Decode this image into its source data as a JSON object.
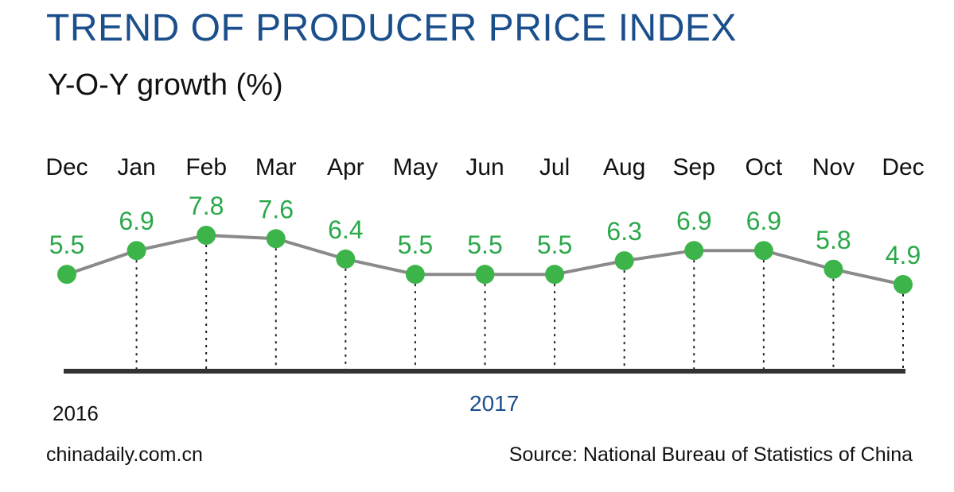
{
  "header": {
    "title": "TREND OF PRODUCER PRICE INDEX",
    "subtitle": "Y-O-Y growth (%)"
  },
  "footer": {
    "year_start": "2016",
    "year_main": "2017",
    "website": "chinadaily.com.cn",
    "source": "Source: National Bureau of Statistics of China"
  },
  "colors": {
    "title": "#1b4f8c",
    "marker": "#3db449",
    "value_label": "#2aa84a",
    "line": "#8a8a8a",
    "baseline": "#333333"
  },
  "chart_data": {
    "type": "line",
    "title": "TREND OF PRODUCER PRICE INDEX",
    "ylabel": "Y-O-Y growth (%)",
    "categories": [
      "Dec",
      "Jan",
      "Feb",
      "Mar",
      "Apr",
      "May",
      "Jun",
      "Jul",
      "Aug",
      "Sep",
      "Oct",
      "Nov",
      "Dec"
    ],
    "values": [
      5.5,
      6.9,
      7.8,
      7.6,
      6.4,
      5.5,
      5.5,
      5.5,
      6.3,
      6.9,
      6.9,
      5.8,
      4.9
    ],
    "ylim": [
      0,
      8
    ],
    "grid": false,
    "legend": "none"
  }
}
